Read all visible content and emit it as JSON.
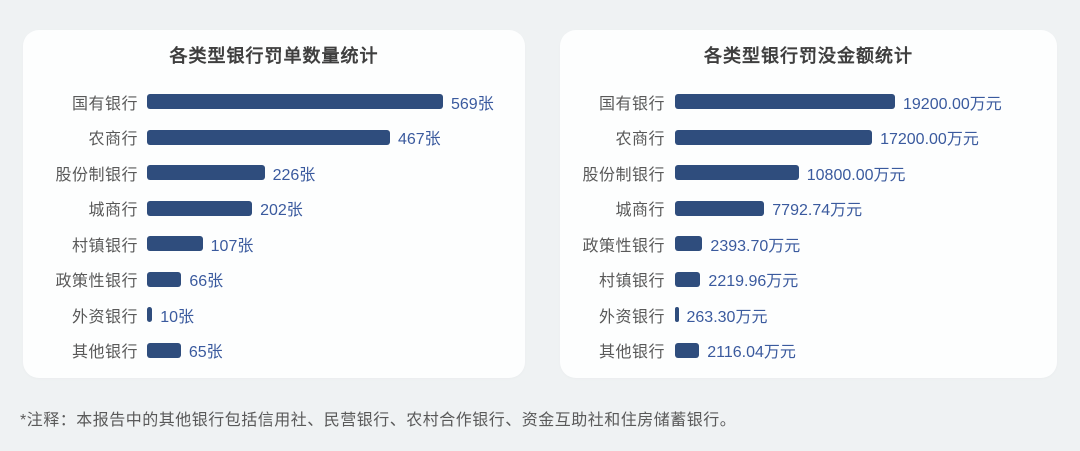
{
  "page": {
    "background_color": "#EFF2F3",
    "note": "*注释：本报告中的其他银行包括信用社、民营银行、农村合作银行、资金互助社和住房储蓄银行。"
  },
  "colors": {
    "bar_fill": "#2F4D7D",
    "value_text": "#3A5A9E",
    "category_text": "#595959",
    "title_text": "#3F3F3F",
    "card_background": "#FDFEFE",
    "page_background": "#EFF2F3"
  },
  "chart_data": [
    {
      "type": "bar",
      "orientation": "horizontal",
      "title": "各类型银行罚单数量统计",
      "unit": "张",
      "categories": [
        "国有银行",
        "农商行",
        "股份制银行",
        "城商行",
        "村镇银行",
        "政策性银行",
        "外资银行",
        "其他银行"
      ],
      "values": [
        569,
        467,
        226,
        202,
        107,
        66,
        10,
        65
      ],
      "value_labels": [
        "569张",
        "467张",
        "226张",
        "202张",
        "107张",
        "66张",
        "10张",
        "65张"
      ],
      "xlim": [
        0,
        569
      ],
      "grid": false,
      "legend": false,
      "value_labels_position": "end-of-bar"
    },
    {
      "type": "bar",
      "orientation": "horizontal",
      "title": "各类型银行罚没金额统计",
      "unit": "万元",
      "categories": [
        "国有银行",
        "农商行",
        "股份制银行",
        "城商行",
        "政策性银行",
        "村镇银行",
        "外资银行",
        "其他银行"
      ],
      "values": [
        19200.0,
        17200.0,
        10800.0,
        7792.74,
        2393.7,
        2219.96,
        263.3,
        2116.04
      ],
      "value_labels": [
        "19200.00万元",
        "17200.00万元",
        "10800.00万元",
        "7792.74万元",
        "2393.70万元",
        "2219.96万元",
        "263.30万元",
        "2116.04万元"
      ],
      "xlim": [
        0,
        19200
      ],
      "grid": false,
      "legend": false,
      "value_labels_position": "end-of-bar"
    }
  ]
}
